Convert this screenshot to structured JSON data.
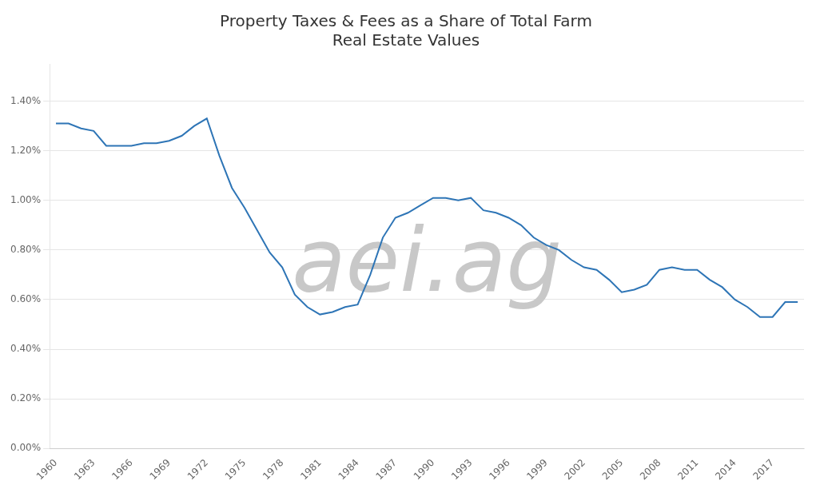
{
  "chart_data": {
    "type": "line",
    "title": "Property Taxes & Fees as a Share of Total Farm\nReal Estate Values",
    "x": [
      1960,
      1961,
      1962,
      1963,
      1964,
      1965,
      1966,
      1967,
      1968,
      1969,
      1970,
      1971,
      1972,
      1973,
      1974,
      1975,
      1976,
      1977,
      1978,
      1979,
      1980,
      1981,
      1982,
      1983,
      1984,
      1985,
      1986,
      1987,
      1988,
      1989,
      1990,
      1991,
      1992,
      1993,
      1994,
      1995,
      1996,
      1997,
      1998,
      1999,
      2000,
      2001,
      2002,
      2003,
      2004,
      2005,
      2006,
      2007,
      2008,
      2009,
      2010,
      2011,
      2012,
      2013,
      2014,
      2015,
      2016,
      2017,
      2018,
      2019
    ],
    "values": [
      0.0131,
      0.0131,
      0.0129,
      0.0128,
      0.0122,
      0.0122,
      0.0122,
      0.0123,
      0.0123,
      0.0124,
      0.0126,
      0.013,
      0.0133,
      0.0118,
      0.0105,
      0.0097,
      0.0088,
      0.0079,
      0.0073,
      0.0062,
      0.0057,
      0.0054,
      0.0055,
      0.0057,
      0.0058,
      0.007,
      0.0085,
      0.0093,
      0.0095,
      0.0098,
      0.0101,
      0.0101,
      0.01,
      0.0101,
      0.0096,
      0.0095,
      0.0093,
      0.009,
      0.0085,
      0.0082,
      0.008,
      0.0076,
      0.0073,
      0.0072,
      0.0068,
      0.0063,
      0.0064,
      0.0066,
      0.0072,
      0.0073,
      0.0072,
      0.0072,
      0.0068,
      0.0065,
      0.006,
      0.0057,
      0.0053,
      0.0053,
      0.0059,
      0.0059
    ],
    "color": "#2E75B6",
    "xlim": [
      1959.5,
      2019.5
    ],
    "xticks": [
      1960,
      1963,
      1966,
      1969,
      1972,
      1975,
      1978,
      1981,
      1984,
      1987,
      1990,
      1993,
      1996,
      1999,
      2002,
      2005,
      2008,
      2011,
      2014,
      2017
    ],
    "ylim": [
      0.0,
      0.0155
    ],
    "yticks": [
      {
        "value": 0.0,
        "label": "0.00%"
      },
      {
        "value": 0.002,
        "label": "0.20%"
      },
      {
        "value": 0.004,
        "label": "0.40%"
      },
      {
        "value": 0.006,
        "label": "0.60%"
      },
      {
        "value": 0.008,
        "label": "0.80%"
      },
      {
        "value": 0.01,
        "label": "1.00%"
      },
      {
        "value": 0.012,
        "label": "1.20%"
      },
      {
        "value": 0.014,
        "label": "1.40%"
      }
    ],
    "grid": "y",
    "annotations": [
      {
        "text": "aei.ag",
        "color": "#c8c8c8"
      }
    ]
  }
}
